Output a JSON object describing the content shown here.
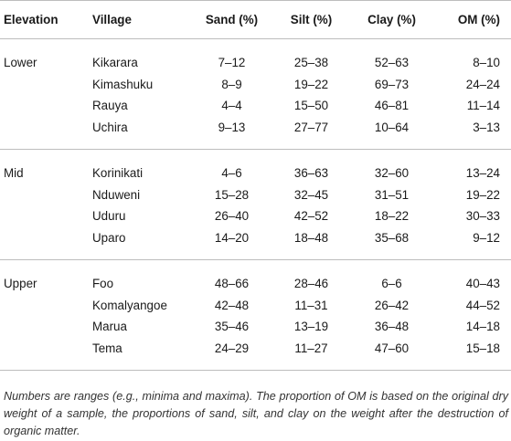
{
  "table": {
    "headers": [
      "Elevation",
      "Village",
      "Sand (%)",
      "Silt (%)",
      "Clay (%)",
      "OM (%)"
    ],
    "groups": [
      {
        "elevation": "Lower",
        "rows": [
          {
            "village": "Kikarara",
            "sand": "7–12",
            "silt": "25–38",
            "clay": "52–63",
            "om": "8–10"
          },
          {
            "village": "Kimashuku",
            "sand": "8–9",
            "silt": "19–22",
            "clay": "69–73",
            "om": "24–24"
          },
          {
            "village": "Rauya",
            "sand": "4–4",
            "silt": "15–50",
            "clay": "46–81",
            "om": "11–14"
          },
          {
            "village": "Uchira",
            "sand": "9–13",
            "silt": "27–77",
            "clay": "10–64",
            "om": "3–13"
          }
        ]
      },
      {
        "elevation": "Mid",
        "rows": [
          {
            "village": "Korinikati",
            "sand": "4–6",
            "silt": "36–63",
            "clay": "32–60",
            "om": "13–24"
          },
          {
            "village": "Nduweni",
            "sand": "15–28",
            "silt": "32–45",
            "clay": "31–51",
            "om": "19–22"
          },
          {
            "village": "Uduru",
            "sand": "26–40",
            "silt": "42–52",
            "clay": "18–22",
            "om": "30–33"
          },
          {
            "village": "Uparo",
            "sand": "14–20",
            "silt": "18–48",
            "clay": "35–68",
            "om": "9–12"
          }
        ]
      },
      {
        "elevation": "Upper",
        "rows": [
          {
            "village": "Foo",
            "sand": "48–66",
            "silt": "28–46",
            "clay": "6–6",
            "om": "40–43"
          },
          {
            "village": "Komalyangoe",
            "sand": "42–48",
            "silt": "11–31",
            "clay": "26–42",
            "om": "44–52"
          },
          {
            "village": "Marua",
            "sand": "35–46",
            "silt": "13–19",
            "clay": "36–48",
            "om": "14–18"
          },
          {
            "village": "Tema",
            "sand": "24–29",
            "silt": "11–27",
            "clay": "47–60",
            "om": "15–18"
          }
        ]
      }
    ]
  },
  "footnote": "Numbers are ranges (e.g., minima and maxima). The proportion of OM is based on the original dry weight of a sample, the proportions of sand, silt, and clay on the weight after the destruction of organic matter."
}
